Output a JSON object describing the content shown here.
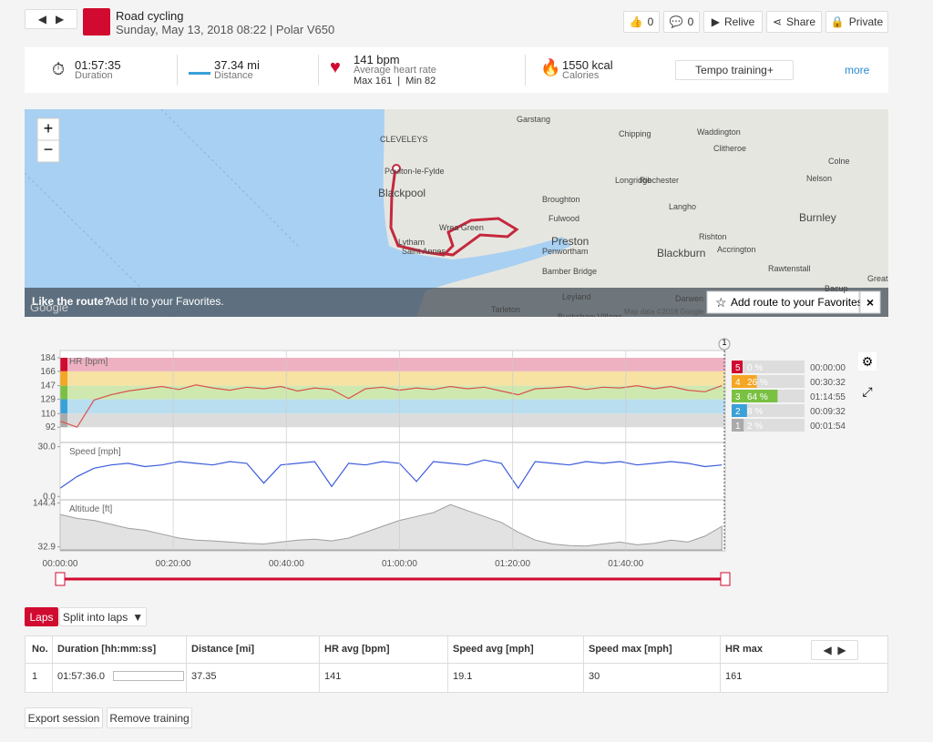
{
  "header": {
    "title": "Road cycling",
    "subtitle": "Sunday, May 13, 2018 08:22 | Polar V650",
    "likes": "0",
    "comments": "0",
    "relive": "Relive",
    "share": "Share",
    "privacy": "Private"
  },
  "summary": {
    "duration": "01:57:35",
    "duration_label": "Duration",
    "distance": "37.34 mi",
    "distance_label": "Distance",
    "heart_rate": "141 bpm",
    "heart_rate_label": "Average heart rate",
    "heart_rate_range": "Max 161  |  Min 82",
    "calories": "1550 kcal",
    "calories_label": "Calories",
    "training_benefit": "Tempo training+",
    "more": "more"
  },
  "map": {
    "places": [
      "Garstang",
      "Chipping",
      "Waddington",
      "Clitheroe",
      "Colne",
      "CLEVELEYS",
      "Poulton-le-Fylde",
      "Blackpool",
      "Longridge",
      "Nelson",
      "Ribchester",
      "Broughton",
      "Fulwood",
      "Langho",
      "Burnley",
      "Wrea Green",
      "Preston",
      "Rishton",
      "Lytham",
      "Saint Annes",
      "Penwortham",
      "Blackburn",
      "Accrington",
      "Bamber Bridge",
      "Bacup",
      "Great",
      "Rawtenstall",
      "Leyland",
      "Tarleton",
      "Buckshaw Village",
      "Darwen"
    ],
    "banner_question": "Like the route?",
    "banner_text": "Add it to your Favorites.",
    "favorite_button": "Add route to your Favorites",
    "google": "Google",
    "attribution": "Map data ©2018 Google"
  },
  "chart_data": [
    {
      "type": "line",
      "title": "HR [bpm]",
      "x": [
        0,
        3,
        6,
        9,
        12,
        15,
        18,
        21,
        24,
        27,
        30,
        33,
        36,
        39,
        42,
        45,
        48,
        51,
        54,
        57,
        60,
        63,
        66,
        69,
        72,
        75,
        78,
        81,
        84,
        87,
        90,
        93,
        96,
        99,
        102,
        105,
        108,
        111,
        114,
        117
      ],
      "xlim": [
        0,
        117.6
      ],
      "series": [
        {
          "color": "#d9534f",
          "values": [
            100,
            92,
            128,
            135,
            140,
            143,
            146,
            142,
            148,
            144,
            141,
            145,
            143,
            146,
            140,
            144,
            142,
            130,
            143,
            145,
            141,
            144,
            142,
            146,
            143,
            145,
            140,
            135,
            143,
            144,
            146,
            142,
            145,
            144,
            147,
            143,
            146,
            141,
            139,
            147
          ]
        }
      ],
      "ylim": [
        73,
        190
      ],
      "yticks": [
        184,
        166,
        147,
        129,
        110,
        92
      ]
    },
    {
      "type": "line",
      "title": "Speed [mph]",
      "x": [
        0,
        3,
        6,
        9,
        12,
        15,
        18,
        21,
        24,
        27,
        30,
        33,
        36,
        39,
        42,
        45,
        48,
        51,
        54,
        57,
        60,
        63,
        66,
        69,
        72,
        75,
        78,
        81,
        84,
        87,
        90,
        93,
        96,
        99,
        102,
        105,
        108,
        111,
        114,
        117
      ],
      "xlim": [
        0,
        117.6
      ],
      "series": [
        {
          "color": "#3b5bdb",
          "values": [
            5,
            12,
            17,
            19,
            20,
            18,
            19,
            21,
            20,
            19,
            21,
            20,
            8,
            19,
            20,
            21,
            6,
            20,
            19,
            21,
            20,
            9,
            21,
            20,
            19,
            22,
            20,
            5,
            21,
            20,
            19,
            21,
            20,
            21,
            19,
            20,
            21,
            20,
            18,
            19
          ]
        }
      ],
      "ylim": [
        -1.5,
        32
      ],
      "yticks": [
        {
          "value": 30,
          "label": "30.0"
        },
        {
          "value": 0,
          "label": "0.0"
        }
      ]
    },
    {
      "type": "area",
      "title": "Altitude [ft]",
      "x": [
        0,
        3,
        6,
        9,
        12,
        15,
        18,
        21,
        24,
        27,
        30,
        33,
        36,
        39,
        42,
        45,
        48,
        51,
        54,
        57,
        60,
        63,
        66,
        69,
        72,
        75,
        78,
        81,
        84,
        87,
        90,
        93,
        96,
        99,
        102,
        105,
        108,
        111,
        114,
        117
      ],
      "xlim": [
        0,
        117.6
      ],
      "series": [
        {
          "color": "#9e9e9e",
          "values": [
            115,
            105,
            100,
            90,
            80,
            75,
            65,
            55,
            50,
            48,
            45,
            42,
            40,
            45,
            50,
            52,
            48,
            55,
            70,
            85,
            100,
            110,
            120,
            140,
            125,
            110,
            95,
            70,
            50,
            40,
            36,
            35,
            40,
            45,
            38,
            42,
            50,
            45,
            60,
            85
          ]
        }
      ],
      "ylim": [
        25,
        150
      ],
      "yticks": [
        {
          "value": 144.4,
          "label": "144.4"
        },
        {
          "value": 32.9,
          "label": "32.9"
        }
      ],
      "xticks": [
        {
          "value": 0,
          "label": "00:00:00"
        },
        {
          "value": 20,
          "label": "00:20:00"
        },
        {
          "value": 40,
          "label": "00:40:00"
        },
        {
          "value": 60,
          "label": "01:00:00"
        },
        {
          "value": 80,
          "label": "01:20:00"
        },
        {
          "value": 100,
          "label": "01:40:00"
        }
      ]
    }
  ],
  "lap_marker": "1",
  "zones": [
    {
      "zone": "5",
      "share": "0 %",
      "time": "00:00:00"
    },
    {
      "zone": "4",
      "share": "26 %",
      "time": "00:30:32"
    },
    {
      "zone": "3",
      "share": "64 %",
      "time": "01:14:55"
    },
    {
      "zone": "2",
      "share": "8 %",
      "time": "00:09:32"
    },
    {
      "zone": "1",
      "share": "2 %",
      "time": "00:01:54"
    }
  ],
  "laps": {
    "tab": "Laps",
    "split": "Split into laps",
    "headers": [
      "No.",
      "Duration [hh:mm:ss]",
      "Distance [mi]",
      "HR avg [bpm]",
      "Speed avg [mph]",
      "Speed max [mph]",
      "HR max"
    ],
    "rows": [
      [
        "1",
        "01:57:36.0",
        "37.35",
        "141",
        "19.1",
        "30",
        "161"
      ]
    ]
  },
  "actions": [
    "Export session",
    "Remove training"
  ]
}
